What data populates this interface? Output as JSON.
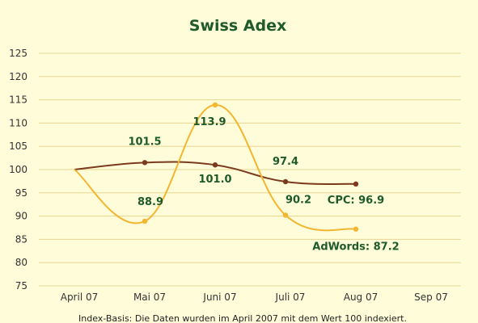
{
  "chart_data": {
    "type": "line",
    "title": "Swiss Adex",
    "categories": [
      "April 07",
      "Mai 07",
      "Juni 07",
      "Juli 07",
      "Aug 07",
      "Sep 07"
    ],
    "y_ticks": [
      "125",
      "120",
      "115",
      "110",
      "105",
      "100",
      "95",
      "90",
      "85",
      "80",
      "75"
    ],
    "ylim": [
      75,
      125
    ],
    "grid": "horizontal",
    "series": [
      {
        "name": "CPC",
        "color": "#7b3a1e",
        "values": [
          100,
          101.5,
          101.0,
          97.4,
          96.9,
          null
        ]
      },
      {
        "name": "AdWords",
        "color": "#f2b630",
        "values": [
          100,
          88.9,
          113.9,
          90.2,
          87.2,
          null
        ]
      }
    ],
    "data_labels": [
      {
        "text": "101.5",
        "series": "CPC",
        "index": 1
      },
      {
        "text": "101.0",
        "series": "CPC",
        "index": 2
      },
      {
        "text": "97.4",
        "series": "CPC",
        "index": 3
      },
      {
        "text": "CPC: 96.9",
        "series": "CPC",
        "index": 4
      },
      {
        "text": "88.9",
        "series": "AdWords",
        "index": 1
      },
      {
        "text": "113.9",
        "series": "AdWords",
        "index": 2
      },
      {
        "text": "90.2",
        "series": "AdWords",
        "index": 3
      },
      {
        "text": "AdWords: 87.2",
        "series": "AdWords",
        "index": 4
      }
    ],
    "footnote": "Index-Basis: Die Daten wurden im April 2007 mit dem Wert 100 indexiert.",
    "grid_color": "#e6d690",
    "label_color": "#1f5a2a"
  }
}
